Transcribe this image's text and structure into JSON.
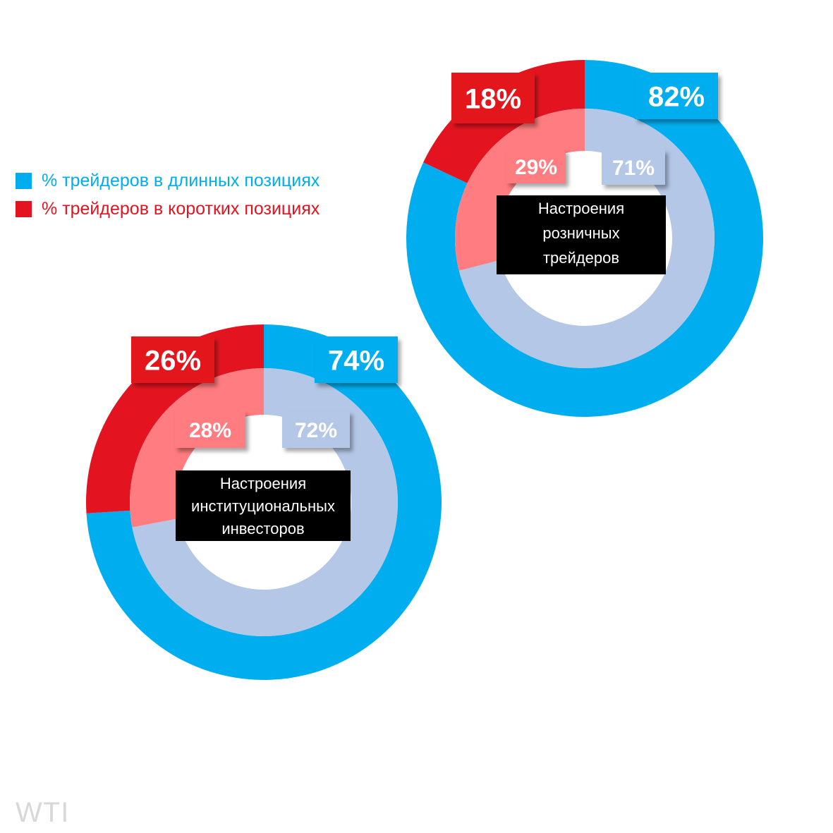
{
  "legend": {
    "long_label": "% трейдеров в длинных позициях",
    "short_label": "% трейдеров в коротких позициях",
    "long_color": "#00aeef",
    "short_color": "#e3141f"
  },
  "charts": {
    "retail": {
      "caption_lines": [
        "Настроения",
        "розничных",
        "трейдеров"
      ]
    },
    "institutional": {
      "caption_lines": [
        "Настроения",
        "институциональных",
        "инвесторов"
      ]
    }
  },
  "watermark": "WTI",
  "chart_data": [
    {
      "type": "pie",
      "title": "Настроения розничных трейдеров",
      "series": [
        {
          "name": "outer",
          "categories": [
            "% трейдеров в длинных позициях",
            "% трейдеров в коротких позициях"
          ],
          "values": [
            82,
            18
          ],
          "colors": [
            "#00aeef",
            "#e3141f"
          ]
        },
        {
          "name": "inner",
          "categories": [
            "% трейдеров в длинных позициях",
            "% трейдеров в коротких позициях"
          ],
          "values": [
            71,
            29
          ],
          "colors": [
            "#b4c7e7",
            "#ff7c80"
          ]
        }
      ],
      "data_labels": {
        "outer_long": "82%",
        "outer_short": "18%",
        "inner_long": "71%",
        "inner_short": "29%"
      }
    },
    {
      "type": "pie",
      "title": "Настроения институциональных инвесторов",
      "series": [
        {
          "name": "outer",
          "categories": [
            "% трейдеров в длинных позициях",
            "% трейдеров в коротких позициях"
          ],
          "values": [
            74,
            26
          ],
          "colors": [
            "#00aeef",
            "#e3141f"
          ]
        },
        {
          "name": "inner",
          "categories": [
            "% трейдеров в длинных позициях",
            "% трейдеров в коротких позициях"
          ],
          "values": [
            72,
            28
          ],
          "colors": [
            "#b4c7e7",
            "#ff7c80"
          ]
        }
      ],
      "data_labels": {
        "outer_long": "74%",
        "outer_short": "26%",
        "inner_long": "72%",
        "inner_short": "28%"
      }
    }
  ]
}
